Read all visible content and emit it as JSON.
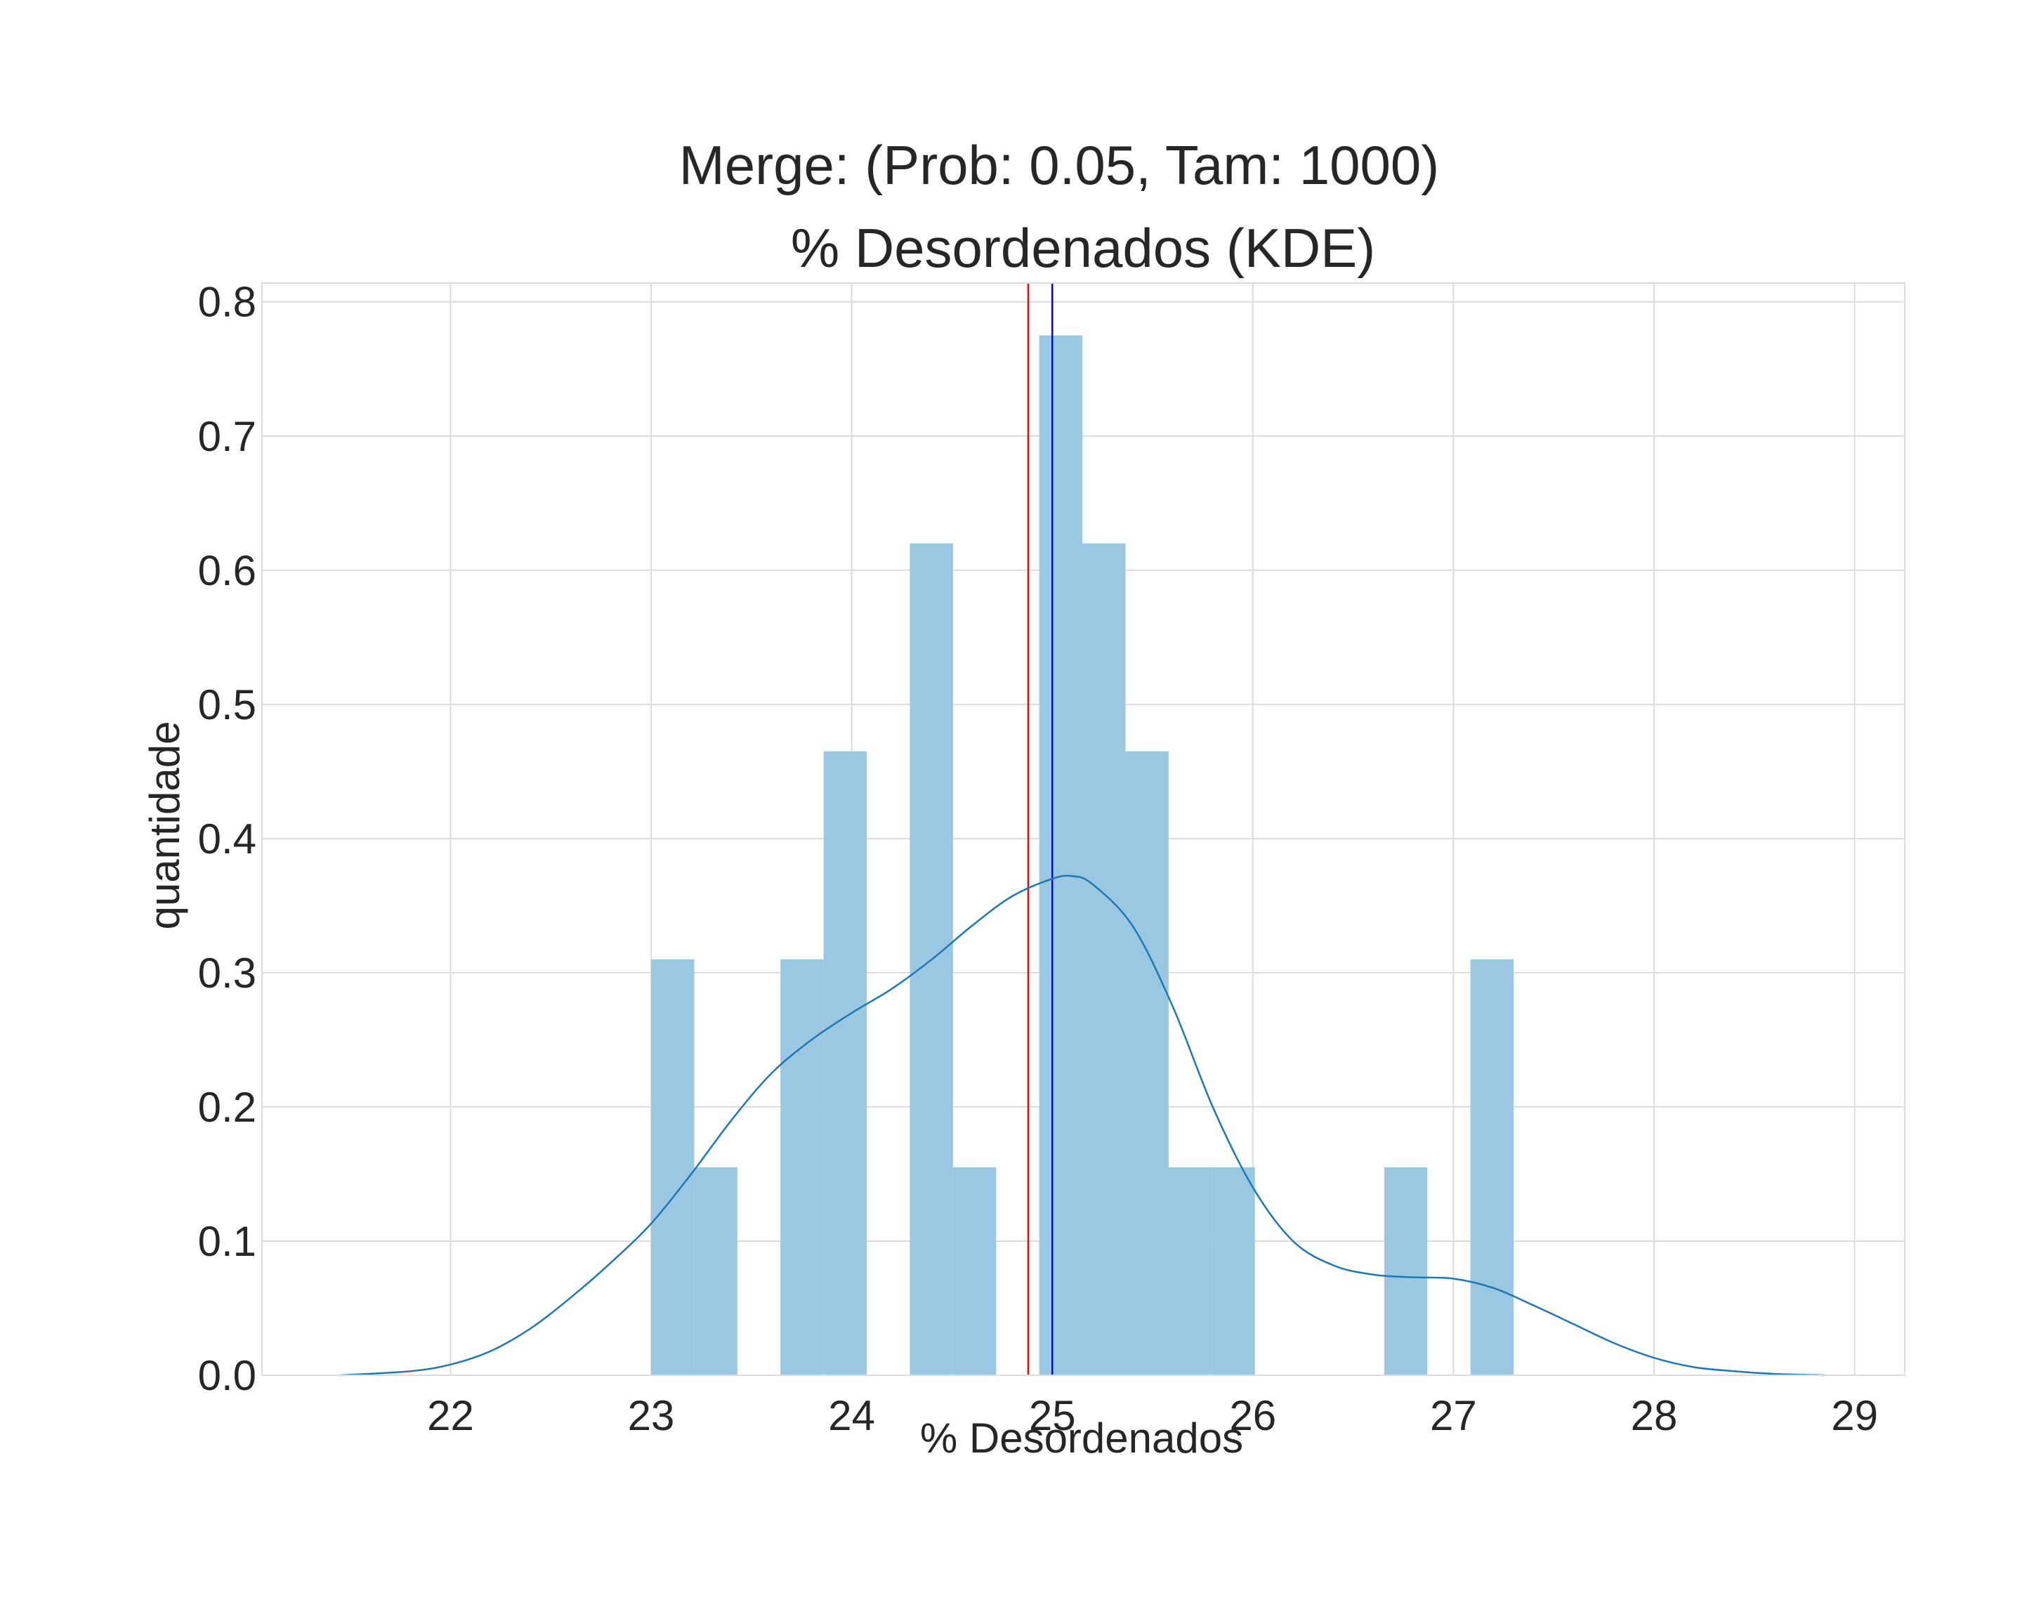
{
  "chart_data": {
    "type": "bar",
    "title": "Merge: (Prob: 0.05, Tam: 1000)",
    "subtitle": "% Desordenados (KDE)",
    "xlabel": "% Desordenados",
    "ylabel": "quantidade",
    "xlim": [
      21.06,
      29.25
    ],
    "ylim": [
      0,
      0.814
    ],
    "x_ticks": [
      22,
      23,
      24,
      25,
      26,
      27,
      28,
      29
    ],
    "y_ticks": [
      0.0,
      0.1,
      0.2,
      0.3,
      0.4,
      0.5,
      0.6,
      0.7,
      0.8
    ],
    "x_tick_labels": [
      "22",
      "23",
      "24",
      "25",
      "26",
      "27",
      "28",
      "29"
    ],
    "y_tick_labels": [
      "0.0",
      "0.1",
      "0.2",
      "0.3",
      "0.4",
      "0.5",
      "0.6",
      "0.7",
      "0.8"
    ],
    "grid": true,
    "bin_width": 0.215,
    "histogram": {
      "bin_starts": [
        23.0,
        23.215,
        23.645,
        23.86,
        24.29,
        24.505,
        24.935,
        25.15,
        25.365,
        25.58,
        25.795,
        26.655,
        27.085
      ],
      "values": [
        0.31,
        0.155,
        0.31,
        0.465,
        0.62,
        0.155,
        0.775,
        0.62,
        0.465,
        0.155,
        0.155,
        0.155,
        0.31
      ],
      "color": "#9ac7e1"
    },
    "kde": {
      "color": "#1f77b4",
      "x": [
        21.45,
        21.8,
        22.0,
        22.2,
        22.4,
        22.6,
        22.8,
        23.0,
        23.2,
        23.4,
        23.6,
        23.8,
        24.0,
        24.2,
        24.4,
        24.6,
        24.8,
        25.0,
        25.1,
        25.2,
        25.4,
        25.6,
        25.8,
        26.0,
        26.2,
        26.4,
        26.6,
        26.8,
        27.0,
        27.2,
        27.4,
        27.6,
        27.8,
        28.0,
        28.2,
        28.4,
        28.6,
        28.85
      ],
      "y": [
        0.0,
        0.003,
        0.008,
        0.018,
        0.035,
        0.058,
        0.084,
        0.113,
        0.15,
        0.19,
        0.225,
        0.25,
        0.27,
        0.288,
        0.31,
        0.335,
        0.357,
        0.37,
        0.372,
        0.366,
        0.335,
        0.275,
        0.2,
        0.14,
        0.1,
        0.082,
        0.075,
        0.073,
        0.072,
        0.065,
        0.052,
        0.038,
        0.024,
        0.013,
        0.006,
        0.003,
        0.001,
        0.0
      ]
    },
    "vertical_lines": [
      {
        "name": "red-line",
        "x": 24.88,
        "color": "#ff0000"
      },
      {
        "name": "blue-line",
        "x": 25.0,
        "color": "#0000ff"
      }
    ]
  }
}
